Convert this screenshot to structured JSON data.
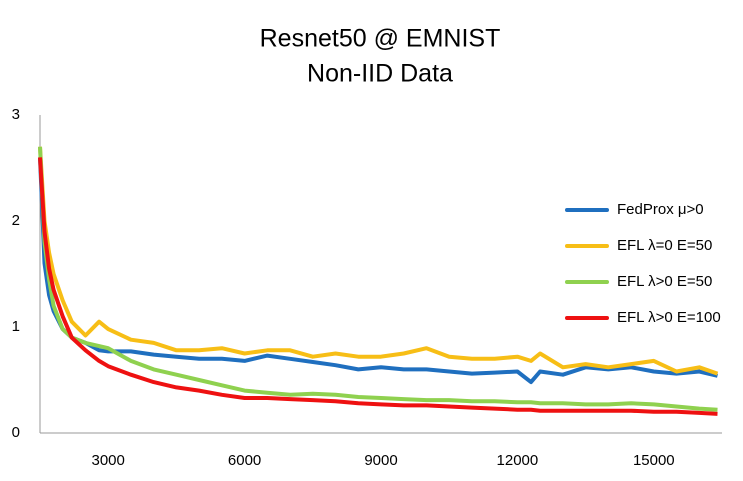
{
  "chart_data": {
    "type": "line",
    "title": "Resnet50 @ EMNIST",
    "subtitle": "Non-IID Data",
    "x": [
      1500,
      1600,
      1700,
      1800,
      2000,
      2200,
      2500,
      2800,
      3000,
      3500,
      4000,
      4500,
      5000,
      5500,
      6000,
      6500,
      7000,
      7500,
      8000,
      8500,
      9000,
      9500,
      10000,
      10500,
      11000,
      11500,
      12000,
      12300,
      12500,
      13000,
      13500,
      14000,
      14500,
      15000,
      15500,
      16000,
      16400
    ],
    "series": [
      {
        "name": "FedProx μ>0",
        "color": "#1f6fbf",
        "values": [
          2.6,
          1.6,
          1.3,
          1.15,
          0.98,
          0.9,
          0.85,
          0.78,
          0.77,
          0.77,
          0.74,
          0.72,
          0.7,
          0.7,
          0.68,
          0.73,
          0.7,
          0.67,
          0.64,
          0.6,
          0.62,
          0.6,
          0.6,
          0.58,
          0.56,
          0.57,
          0.58,
          0.48,
          0.58,
          0.55,
          0.62,
          0.6,
          0.62,
          0.58,
          0.56,
          0.58,
          0.54
        ]
      },
      {
        "name": "EFL λ=0 E=50",
        "color": "#f7be16",
        "values": [
          2.7,
          2.0,
          1.7,
          1.5,
          1.25,
          1.05,
          0.92,
          1.05,
          0.98,
          0.88,
          0.85,
          0.78,
          0.78,
          0.8,
          0.75,
          0.78,
          0.78,
          0.72,
          0.75,
          0.72,
          0.72,
          0.75,
          0.8,
          0.72,
          0.7,
          0.7,
          0.72,
          0.68,
          0.75,
          0.62,
          0.65,
          0.62,
          0.65,
          0.68,
          0.58,
          0.62,
          0.56
        ]
      },
      {
        "name": "EFL λ>0 E=50",
        "color": "#8fd14f",
        "values": [
          2.7,
          1.8,
          1.45,
          1.2,
          0.98,
          0.9,
          0.85,
          0.82,
          0.8,
          0.68,
          0.6,
          0.55,
          0.5,
          0.45,
          0.4,
          0.38,
          0.36,
          0.37,
          0.36,
          0.34,
          0.33,
          0.32,
          0.31,
          0.31,
          0.3,
          0.3,
          0.29,
          0.29,
          0.28,
          0.28,
          0.27,
          0.27,
          0.28,
          0.27,
          0.25,
          0.23,
          0.22
        ]
      },
      {
        "name": "EFL λ>0 E=100",
        "color": "#ee1111",
        "values": [
          2.6,
          1.9,
          1.55,
          1.35,
          1.1,
          0.9,
          0.78,
          0.68,
          0.63,
          0.55,
          0.48,
          0.43,
          0.4,
          0.36,
          0.33,
          0.33,
          0.32,
          0.31,
          0.3,
          0.28,
          0.27,
          0.26,
          0.26,
          0.25,
          0.24,
          0.23,
          0.22,
          0.22,
          0.21,
          0.21,
          0.21,
          0.21,
          0.21,
          0.2,
          0.2,
          0.19,
          0.18
        ]
      }
    ],
    "xlim": [
      1500,
      16500
    ],
    "ylim": [
      0,
      3
    ],
    "xticks": [
      3000,
      6000,
      9000,
      12000,
      15000
    ],
    "yticks": [
      0,
      1,
      2,
      3
    ],
    "grid": false,
    "legend": "right"
  }
}
